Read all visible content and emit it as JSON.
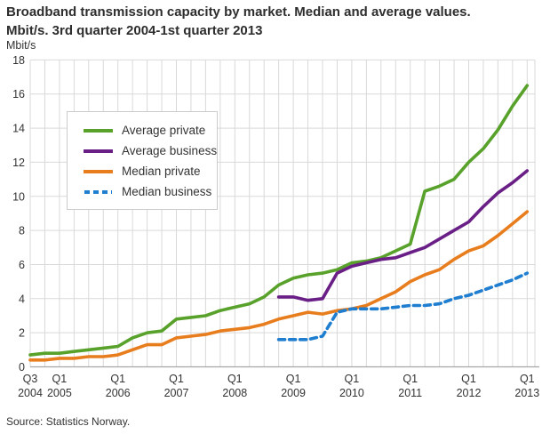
{
  "header": {
    "title_line1": "Broadband transmission capacity by market. Median and average values.",
    "title_line2": "Mbit/s. 3rd quarter 2004-1st quarter 2013"
  },
  "unit_label": "Mbit/s",
  "source": "Source: Statistics Norway.",
  "colors": {
    "average_private": "#58a22b",
    "average_business": "#6a1f87",
    "median_private": "#e87d1e",
    "median_business": "#1f7ed0",
    "grid": "#d9d9d9",
    "axis": "#a6a6a6",
    "text": "#333333"
  },
  "chart_data": {
    "type": "line",
    "title": "Broadband transmission capacity by market. Median and average values. Mbit/s. 3rd quarter 2004-1st quarter 2013",
    "xlabel": "",
    "ylabel": "Mbit/s",
    "ylim": [
      0,
      18
    ],
    "ytick_step": 2,
    "ytick_labels": [
      "0",
      "2",
      "4",
      "6",
      "8",
      "10",
      "12",
      "14",
      "16",
      "18"
    ],
    "grid": true,
    "legend_position": "upper-left-inside",
    "x_categories": [
      "2004 Q3",
      "2004 Q4",
      "2005 Q1",
      "2005 Q2",
      "2005 Q3",
      "2005 Q4",
      "2006 Q1",
      "2006 Q2",
      "2006 Q3",
      "2006 Q4",
      "2007 Q1",
      "2007 Q2",
      "2007 Q3",
      "2007 Q4",
      "2008 Q1",
      "2008 Q2",
      "2008 Q3",
      "2008 Q4",
      "2009 Q1",
      "2009 Q2",
      "2009 Q3",
      "2009 Q4",
      "2010 Q1",
      "2010 Q2",
      "2010 Q3",
      "2010 Q4",
      "2011 Q1",
      "2011 Q2",
      "2011 Q3",
      "2011 Q4",
      "2012 Q1",
      "2012 Q2",
      "2012 Q3",
      "2012 Q4",
      "2013 Q1"
    ],
    "xtick_labels": [
      {
        "index": 0,
        "line1": "Q3",
        "line2": "2004"
      },
      {
        "index": 2,
        "line1": "Q1",
        "line2": "2005"
      },
      {
        "index": 6,
        "line1": "Q1",
        "line2": "2006"
      },
      {
        "index": 10,
        "line1": "Q1",
        "line2": "2007"
      },
      {
        "index": 14,
        "line1": "Q1",
        "line2": "2008"
      },
      {
        "index": 18,
        "line1": "Q1",
        "line2": "2009"
      },
      {
        "index": 22,
        "line1": "Q1",
        "line2": "2010"
      },
      {
        "index": 26,
        "line1": "Q1",
        "line2": "2011"
      },
      {
        "index": 30,
        "line1": "Q1",
        "line2": "2012"
      },
      {
        "index": 34,
        "line1": "Q1",
        "line2": "2013"
      }
    ],
    "series": [
      {
        "name": "Average private",
        "color": "#58a22b",
        "style": "solid",
        "values": [
          0.7,
          0.8,
          0.8,
          0.9,
          1.0,
          1.1,
          1.2,
          1.7,
          2.0,
          2.1,
          2.8,
          2.9,
          3.0,
          3.3,
          3.5,
          3.7,
          4.1,
          4.8,
          5.2,
          5.4,
          5.5,
          5.7,
          6.1,
          6.2,
          6.4,
          6.8,
          7.2,
          10.3,
          10.6,
          11.0,
          12.0,
          12.8,
          13.9,
          15.3,
          16.5
        ]
      },
      {
        "name": "Average business",
        "color": "#6a1f87",
        "style": "solid",
        "values": [
          null,
          null,
          null,
          null,
          null,
          null,
          null,
          null,
          null,
          null,
          null,
          null,
          null,
          null,
          null,
          null,
          null,
          4.1,
          4.1,
          3.9,
          4.0,
          5.5,
          5.9,
          6.1,
          6.3,
          6.4,
          6.7,
          7.0,
          7.5,
          8.0,
          8.5,
          9.4,
          10.2,
          10.8,
          11.5
        ]
      },
      {
        "name": "Median private",
        "color": "#e87d1e",
        "style": "solid",
        "values": [
          0.4,
          0.4,
          0.5,
          0.5,
          0.6,
          0.6,
          0.7,
          1.0,
          1.3,
          1.3,
          1.7,
          1.8,
          1.9,
          2.1,
          2.2,
          2.3,
          2.5,
          2.8,
          3.0,
          3.2,
          3.1,
          3.3,
          3.4,
          3.6,
          4.0,
          4.4,
          5.0,
          5.4,
          5.7,
          6.3,
          6.8,
          7.1,
          7.7,
          8.4,
          9.1
        ]
      },
      {
        "name": "Median business",
        "color": "#1f7ed0",
        "style": "dashed",
        "values": [
          null,
          null,
          null,
          null,
          null,
          null,
          null,
          null,
          null,
          null,
          null,
          null,
          null,
          null,
          null,
          null,
          null,
          1.6,
          1.6,
          1.6,
          1.8,
          3.2,
          3.4,
          3.4,
          3.4,
          3.5,
          3.6,
          3.6,
          3.7,
          4.0,
          4.2,
          4.5,
          4.8,
          5.1,
          5.5
        ]
      }
    ]
  }
}
